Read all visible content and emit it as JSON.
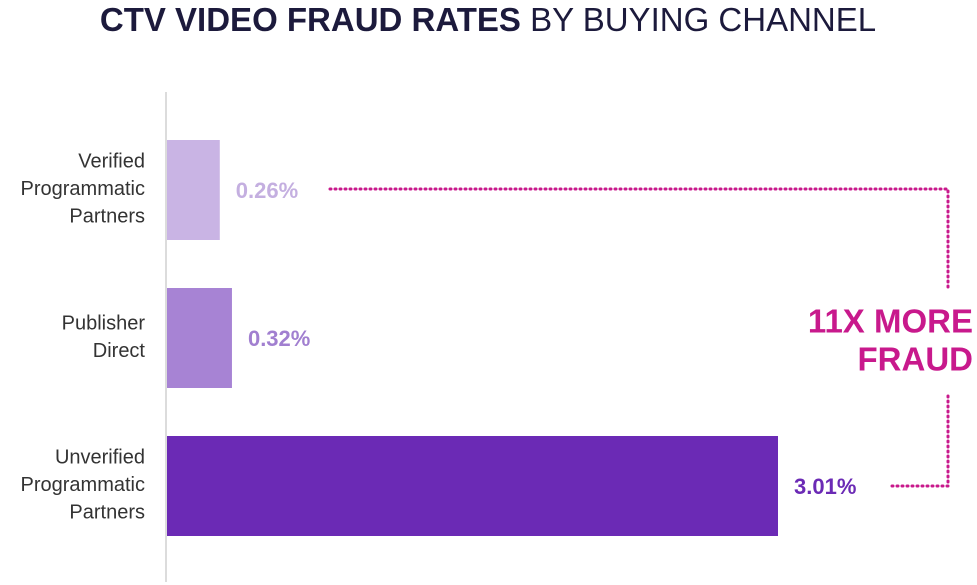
{
  "chart_data": {
    "type": "hbar",
    "title": [
      "CTV VIDEO FRAUD RATES",
      "BY BUYING CHANNEL"
    ],
    "categories": [
      [
        "Verified",
        "Programmatic",
        "Partners"
      ],
      [
        "Publisher",
        "Direct"
      ],
      [
        "Unverified",
        "Programmatic",
        "Partners"
      ]
    ],
    "values": [
      0.26,
      0.32,
      3.01
    ],
    "value_labels": [
      "0.26%",
      "0.32%",
      "3.01%"
    ],
    "colors": [
      "#c9b4e4",
      "#a783d4",
      "#6b2ab5"
    ],
    "label_colors": [
      "#c4afe0",
      "#a17fd0",
      "#6b2ab5"
    ],
    "annotation": {
      "lines": [
        "11X MORE",
        "FRAUD"
      ],
      "color": "#c8198c"
    }
  }
}
